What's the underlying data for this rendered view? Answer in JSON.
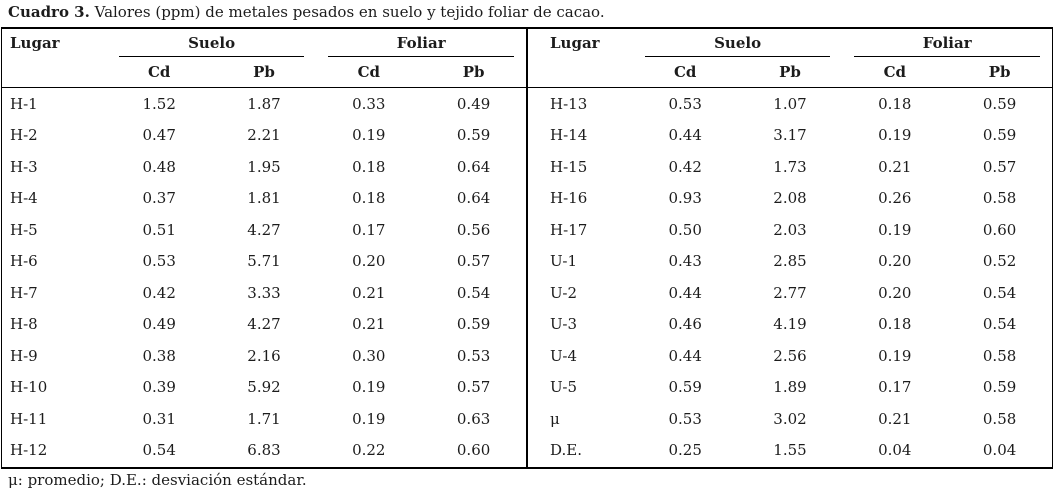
{
  "caption": {
    "label": "Cuadro 3.",
    "text": " Valores (ppm) de metales pesados en suelo y tejido foliar de cacao."
  },
  "header": {
    "lugar": "Lugar",
    "groups": [
      {
        "label": "Suelo",
        "sub": [
          "Cd",
          "Pb"
        ]
      },
      {
        "label": "Foliar",
        "sub": [
          "Cd",
          "Pb"
        ]
      }
    ]
  },
  "tables": {
    "left": {
      "rows": [
        [
          "H-1",
          "1.52",
          "1.87",
          "0.33",
          "0.49"
        ],
        [
          "H-2",
          "0.47",
          "2.21",
          "0.19",
          "0.59"
        ],
        [
          "H-3",
          "0.48",
          "1.95",
          "0.18",
          "0.64"
        ],
        [
          "H-4",
          "0.37",
          "1.81",
          "0.18",
          "0.64"
        ],
        [
          "H-5",
          "0.51",
          "4.27",
          "0.17",
          "0.56"
        ],
        [
          "H-6",
          "0.53",
          "5.71",
          "0.20",
          "0.57"
        ],
        [
          "H-7",
          "0.42",
          "3.33",
          "0.21",
          "0.54"
        ],
        [
          "H-8",
          "0.49",
          "4.27",
          "0.21",
          "0.59"
        ],
        [
          "H-9",
          "0.38",
          "2.16",
          "0.30",
          "0.53"
        ],
        [
          "H-10",
          "0.39",
          "5.92",
          "0.19",
          "0.57"
        ],
        [
          "H-11",
          "0.31",
          "1.71",
          "0.19",
          "0.63"
        ],
        [
          "H-12",
          "0.54",
          "6.83",
          "0.22",
          "0.60"
        ]
      ]
    },
    "right": {
      "rows": [
        [
          "H-13",
          "0.53",
          "1.07",
          "0.18",
          "0.59"
        ],
        [
          "H-14",
          "0.44",
          "3.17",
          "0.19",
          "0.59"
        ],
        [
          "H-15",
          "0.42",
          "1.73",
          "0.21",
          "0.57"
        ],
        [
          "H-16",
          "0.93",
          "2.08",
          "0.26",
          "0.58"
        ],
        [
          "H-17",
          "0.50",
          "2.03",
          "0.19",
          "0.60"
        ],
        [
          "U-1",
          "0.43",
          "2.85",
          "0.20",
          "0.52"
        ],
        [
          "U-2",
          "0.44",
          "2.77",
          "0.20",
          "0.54"
        ],
        [
          "U-3",
          "0.46",
          "4.19",
          "0.18",
          "0.54"
        ],
        [
          "U-4",
          "0.44",
          "2.56",
          "0.19",
          "0.58"
        ],
        [
          "U-5",
          "0.59",
          "1.89",
          "0.17",
          "0.59"
        ],
        [
          "μ",
          "0.53",
          "3.02",
          "0.21",
          "0.58"
        ],
        [
          "D.E.",
          "0.25",
          "1.55",
          "0.04",
          "0.04"
        ]
      ]
    }
  },
  "footnote": "μ: promedio; D.E.: desviación estándar.",
  "colors": {
    "text": "#1c1c1c",
    "border": "#000000",
    "background": "#ffffff"
  },
  "chart_data": {
    "type": "table",
    "title": "Cuadro 3. Valores (ppm) de metales pesados en suelo y tejido foliar de cacao.",
    "columns": [
      "Lugar",
      "Suelo Cd",
      "Suelo Pb",
      "Foliar Cd",
      "Foliar Pb"
    ],
    "rows": [
      [
        "H-1",
        1.52,
        1.87,
        0.33,
        0.49
      ],
      [
        "H-2",
        0.47,
        2.21,
        0.19,
        0.59
      ],
      [
        "H-3",
        0.48,
        1.95,
        0.18,
        0.64
      ],
      [
        "H-4",
        0.37,
        1.81,
        0.18,
        0.64
      ],
      [
        "H-5",
        0.51,
        4.27,
        0.17,
        0.56
      ],
      [
        "H-6",
        0.53,
        5.71,
        0.2,
        0.57
      ],
      [
        "H-7",
        0.42,
        3.33,
        0.21,
        0.54
      ],
      [
        "H-8",
        0.49,
        4.27,
        0.21,
        0.59
      ],
      [
        "H-9",
        0.38,
        2.16,
        0.3,
        0.53
      ],
      [
        "H-10",
        0.39,
        5.92,
        0.19,
        0.57
      ],
      [
        "H-11",
        0.31,
        1.71,
        0.19,
        0.63
      ],
      [
        "H-12",
        0.54,
        6.83,
        0.22,
        0.6
      ],
      [
        "H-13",
        0.53,
        1.07,
        0.18,
        0.59
      ],
      [
        "H-14",
        0.44,
        3.17,
        0.19,
        0.59
      ],
      [
        "H-15",
        0.42,
        1.73,
        0.21,
        0.57
      ],
      [
        "H-16",
        0.93,
        2.08,
        0.26,
        0.58
      ],
      [
        "H-17",
        0.5,
        2.03,
        0.19,
        0.6
      ],
      [
        "U-1",
        0.43,
        2.85,
        0.2,
        0.52
      ],
      [
        "U-2",
        0.44,
        2.77,
        0.2,
        0.54
      ],
      [
        "U-3",
        0.46,
        4.19,
        0.18,
        0.54
      ],
      [
        "U-4",
        0.44,
        2.56,
        0.19,
        0.58
      ],
      [
        "U-5",
        0.59,
        1.89,
        0.17,
        0.59
      ],
      [
        "μ",
        0.53,
        3.02,
        0.21,
        0.58
      ],
      [
        "D.E.",
        0.25,
        1.55,
        0.04,
        0.04
      ]
    ],
    "footnote": "μ: promedio; D.E.: desviación estándar."
  }
}
